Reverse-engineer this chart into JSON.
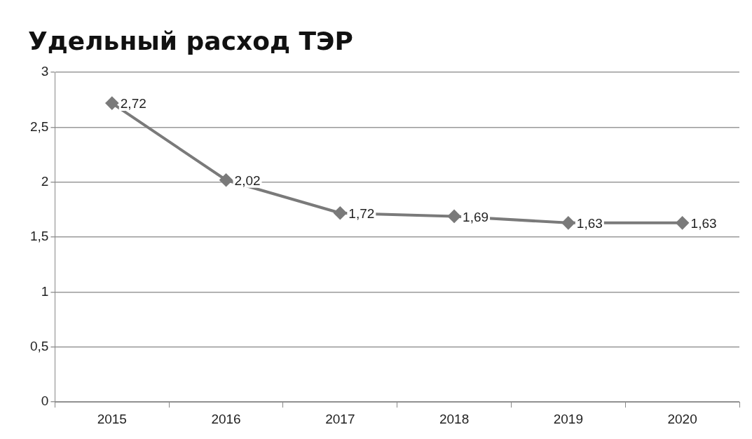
{
  "chart_data": {
    "type": "line",
    "title": "Удельный расход ТЭР",
    "categories": [
      "2015",
      "2016",
      "2017",
      "2018",
      "2019",
      "2020"
    ],
    "series": [
      {
        "color": "#7a7a7a",
        "values": [
          2.72,
          2.02,
          1.72,
          1.69,
          1.63,
          1.63
        ],
        "value_labels": [
          "2,72",
          "2,02",
          "1,72",
          "1,69",
          "1,63",
          "1,63"
        ]
      }
    ],
    "ylim": [
      0,
      3
    ],
    "yticks": [
      0,
      {
        "value": 0.5,
        "label": "0,5"
      },
      1,
      {
        "value": 1.5,
        "label": "1,5"
      },
      2,
      {
        "value": 2.5,
        "label": "2,5"
      },
      3
    ],
    "grid": "y",
    "legend": false,
    "marker": "diamond",
    "line_style": "solid"
  }
}
